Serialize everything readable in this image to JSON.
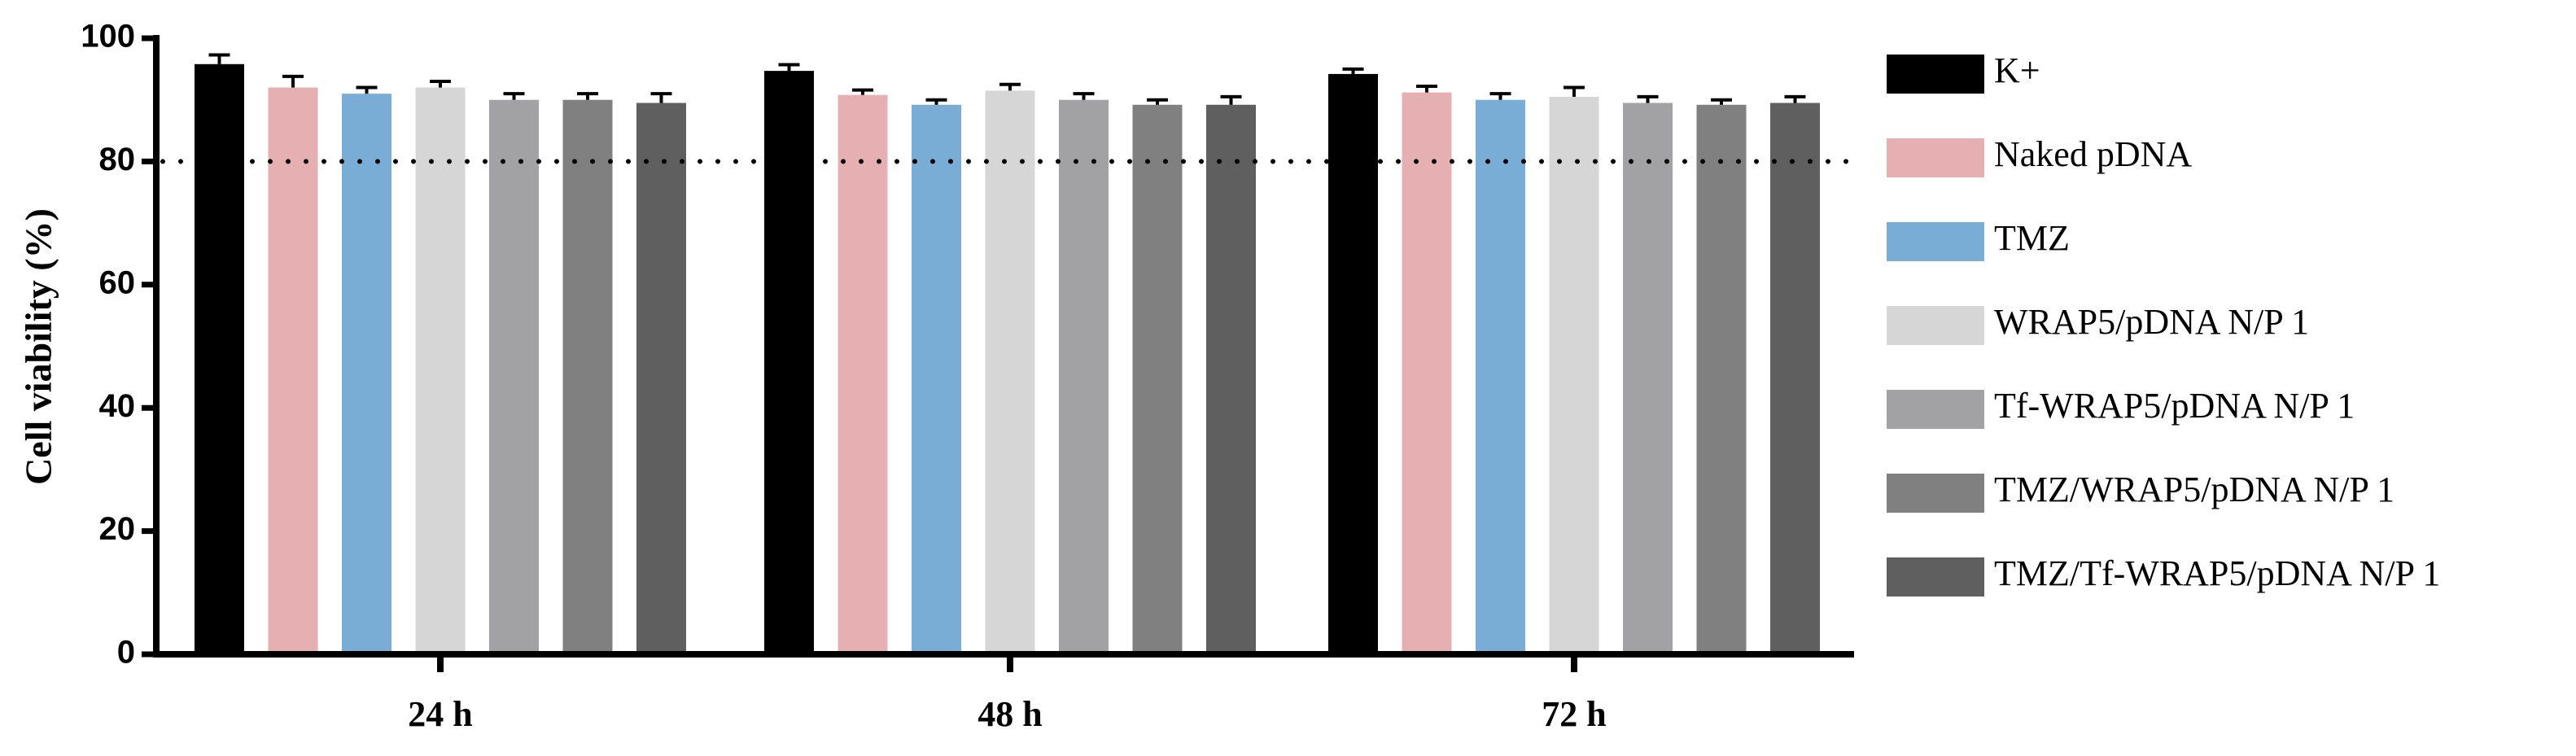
{
  "chart_data": {
    "type": "bar",
    "y_label": "Cell viability (%)",
    "categories": [
      "24 h",
      "48 h",
      "72 h"
    ],
    "series": [
      {
        "name": "K+",
        "color": "#000000",
        "values": [
          95.8,
          94.7,
          94.2
        ],
        "errors": [
          1.5,
          1.0,
          0.8
        ]
      },
      {
        "name": "Naked pDNA",
        "color": "#e6b0b2",
        "values": [
          92.0,
          90.8,
          91.2
        ],
        "errors": [
          1.8,
          0.8,
          1.0
        ]
      },
      {
        "name": "TMZ",
        "color": "#7aadd6",
        "values": [
          91.0,
          89.2,
          90.0
        ],
        "errors": [
          1.0,
          0.8,
          1.0
        ]
      },
      {
        "name": "WRAP5/pDNA N/P 1",
        "color": "#d6d6d6",
        "values": [
          92.0,
          91.5,
          90.5
        ],
        "errors": [
          1.0,
          1.0,
          1.5
        ]
      },
      {
        "name": "Tf-WRAP5/pDNA N/P 1",
        "color": "#a2a2a5",
        "values": [
          90.0,
          90.0,
          89.5
        ],
        "errors": [
          1.0,
          1.0,
          1.0
        ]
      },
      {
        "name": "TMZ/WRAP5/pDNA N/P 1",
        "color": "#808080",
        "values": [
          90.0,
          89.2,
          89.2
        ],
        "errors": [
          1.0,
          0.8,
          0.8
        ]
      },
      {
        "name": "TMZ/Tf-WRAP5/pDNA N/P 1",
        "color": "#5f5f5f",
        "values": [
          89.5,
          89.2,
          89.5
        ],
        "errors": [
          1.5,
          1.3,
          1.0
        ]
      }
    ],
    "reference_line": 80,
    "ylim": [
      0,
      100
    ],
    "yticks": [
      0,
      20,
      40,
      60,
      80,
      100
    ],
    "legend": "right"
  }
}
